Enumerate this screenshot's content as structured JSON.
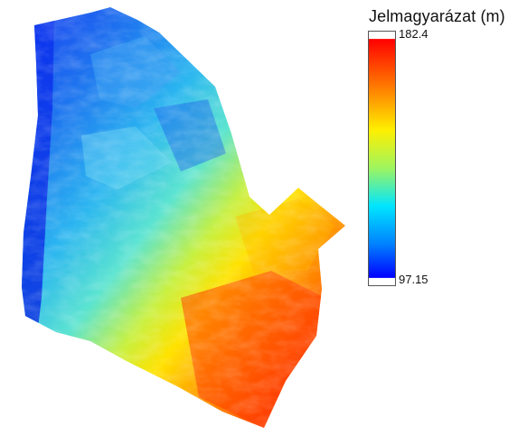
{
  "legend": {
    "title": "Jelmagyarázat (m)",
    "max_label": "182.4",
    "min_label": "97.15",
    "max_value": 182.4,
    "min_value": 97.15,
    "colormap": "jet",
    "colors": [
      "#0000ff",
      "#00a0ff",
      "#00ffff",
      "#ffff00",
      "#ff8000",
      "#ff0000"
    ]
  }
}
